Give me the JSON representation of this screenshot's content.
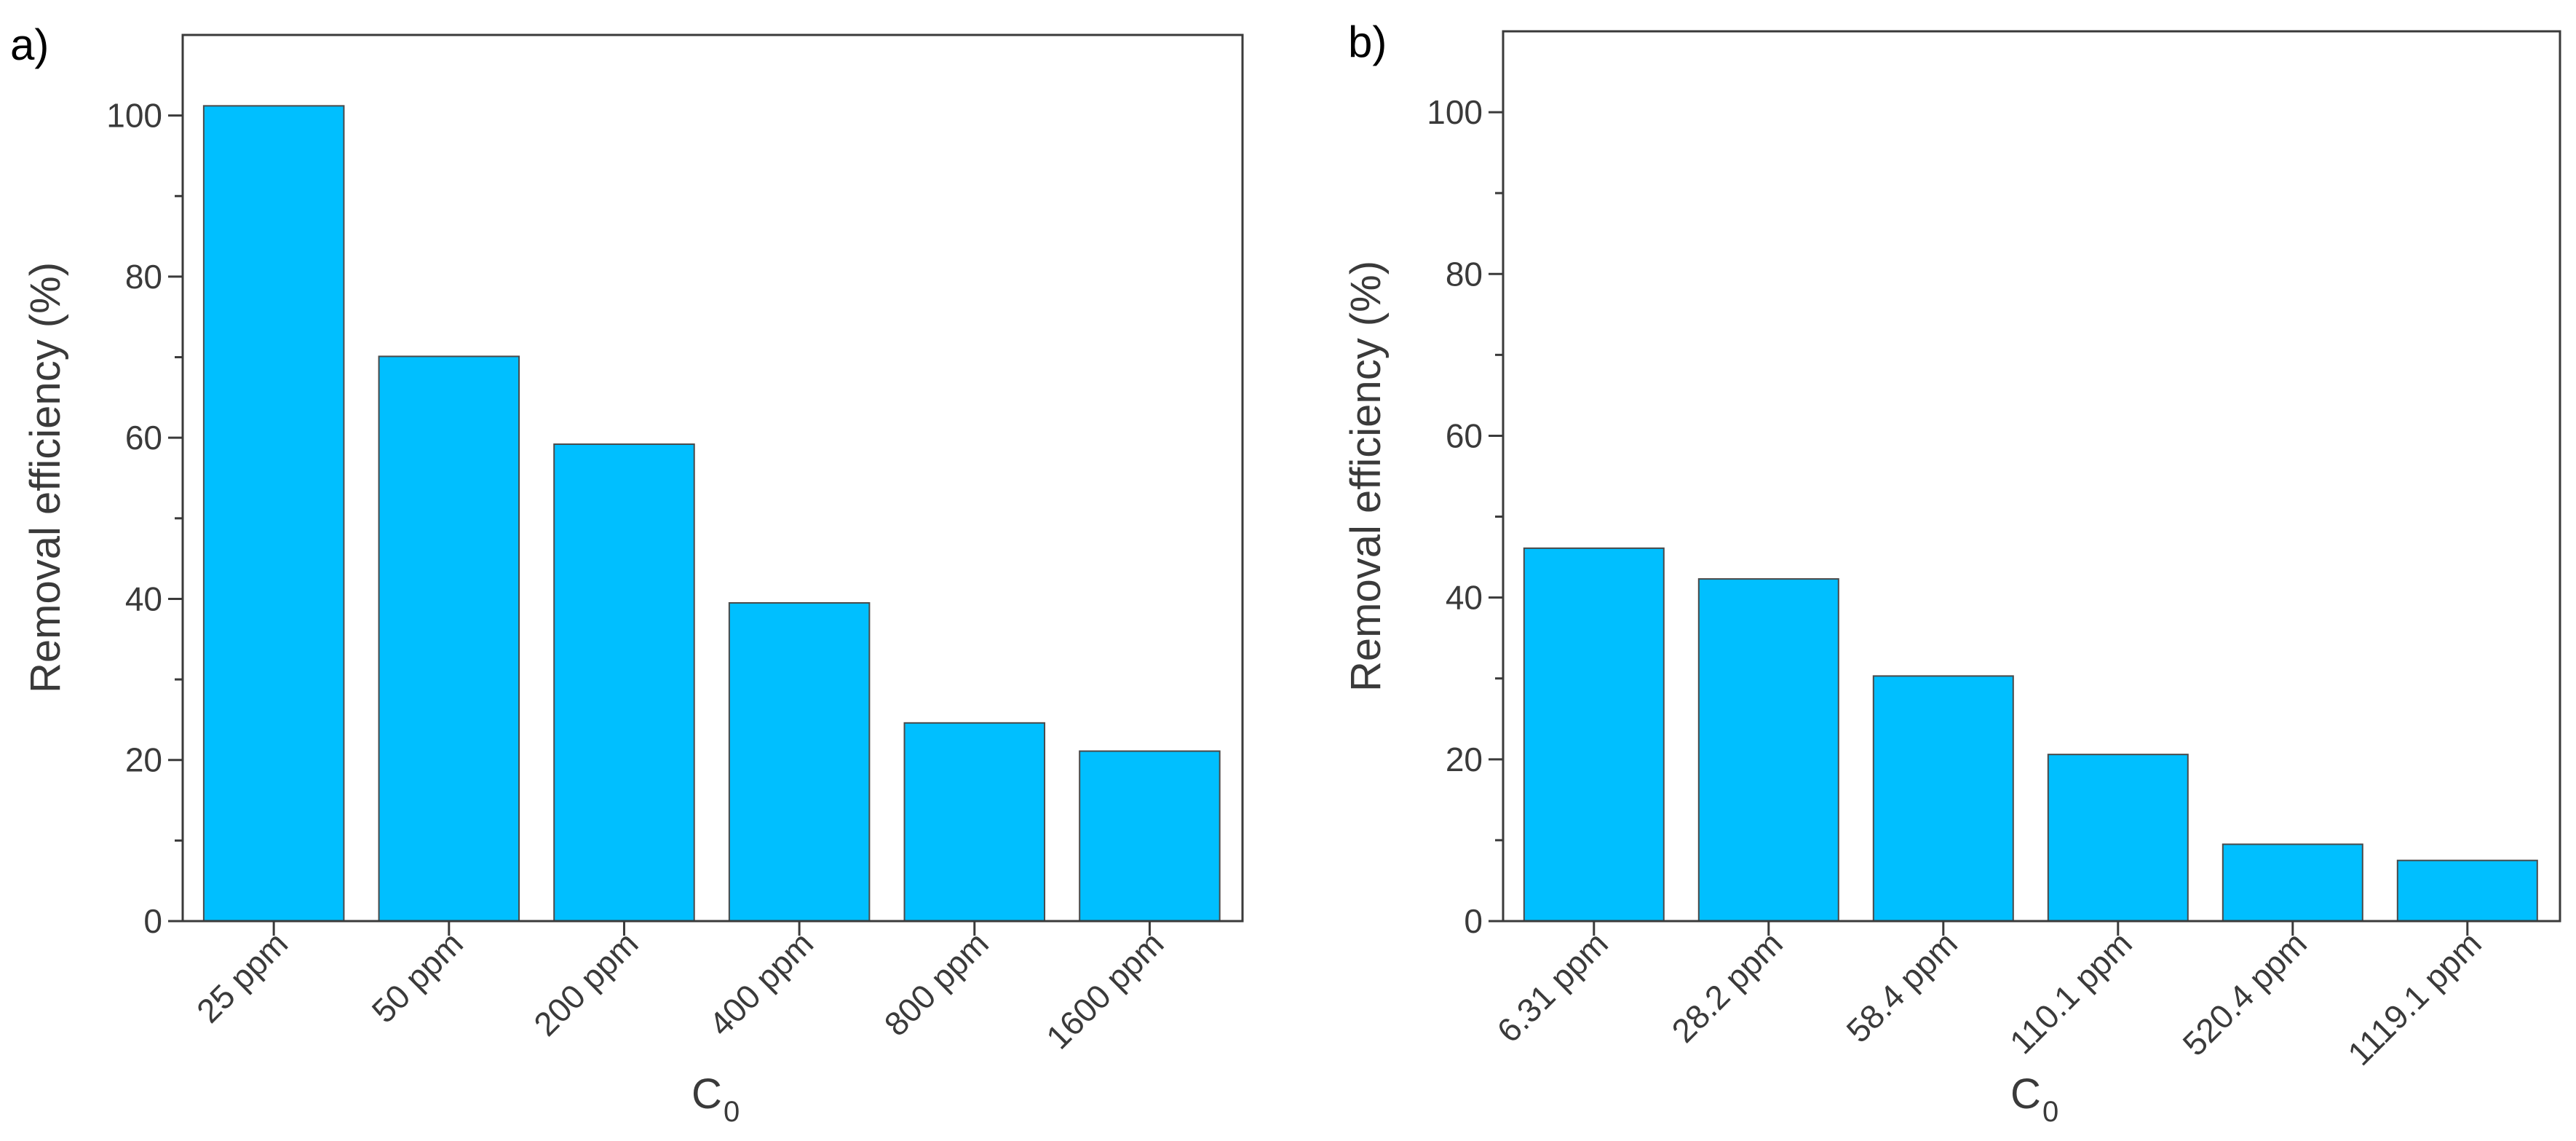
{
  "bar_color": "#00BFFF",
  "bar_edge_color": "#4a4a4a",
  "chart_data": [
    {
      "type": "bar",
      "panel_label": "a)",
      "categories": [
        "25 ppm",
        "50 ppm",
        "200 ppm",
        "400 ppm",
        "800 ppm",
        "1600 ppm"
      ],
      "values": [
        101.2,
        70.1,
        59.2,
        39.5,
        24.6,
        21.1
      ],
      "xlabel": "C",
      "xlabel_sub": "0",
      "ylabel": "Removal efficiency (%)",
      "ylim": [
        0,
        110
      ],
      "yticks": [
        "0",
        "20",
        "40",
        "60",
        "80",
        "100"
      ],
      "grid": false
    },
    {
      "type": "bar",
      "panel_label": "b)",
      "categories": [
        "6.31 ppm",
        "28.2 ppm",
        "58.4 ppm",
        "110.1 ppm",
        "520.4 ppm",
        "1119.1 ppm"
      ],
      "values": [
        46.1,
        42.3,
        30.3,
        20.6,
        9.5,
        7.5
      ],
      "xlabel": "C",
      "xlabel_sub": "0",
      "ylabel": "Removal efficiency (%)",
      "ylim": [
        0,
        110
      ],
      "yticks": [
        "0",
        "20",
        "40",
        "60",
        "80",
        "100"
      ],
      "grid": false
    }
  ]
}
